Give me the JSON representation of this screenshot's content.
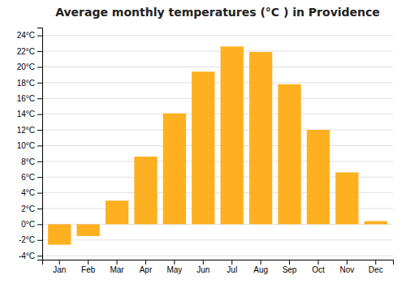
{
  "chart_data": {
    "type": "bar",
    "title": "Average monthly temperatures (°C ) in Providence",
    "categories": [
      "Jan",
      "Feb",
      "Mar",
      "Apr",
      "May",
      "Jun",
      "Jul",
      "Aug",
      "Sep",
      "Oct",
      "Nov",
      "Dec"
    ],
    "values": [
      -2.6,
      -1.5,
      3.0,
      8.6,
      14.1,
      19.4,
      22.6,
      21.9,
      17.8,
      12.0,
      6.6,
      0.4
    ],
    "color": "#FFB020",
    "ylim": [
      -4.5,
      25
    ],
    "yticks": [
      {
        "value": -4,
        "label": "-4°C"
      },
      {
        "value": -2,
        "label": "-2°C"
      },
      {
        "value": 0,
        "label": "0°C"
      },
      {
        "value": 2,
        "label": "2°C"
      },
      {
        "value": 4,
        "label": "4°C"
      },
      {
        "value": 6,
        "label": "6°C"
      },
      {
        "value": 8,
        "label": "8°C"
      },
      {
        "value": 10,
        "label": "10°C"
      },
      {
        "value": 12,
        "label": "12°C"
      },
      {
        "value": 14,
        "label": "14°C"
      },
      {
        "value": 16,
        "label": "16°C"
      },
      {
        "value": 18,
        "label": "18°C"
      },
      {
        "value": 20,
        "label": "20°C"
      },
      {
        "value": 22,
        "label": "22°C"
      },
      {
        "value": 24,
        "label": "24°C"
      }
    ],
    "grid": true
  }
}
